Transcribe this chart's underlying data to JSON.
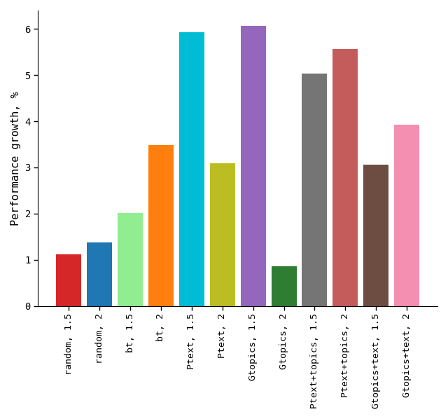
{
  "categories": [
    "random, 1.5",
    "random, 2",
    "bt, 1.5",
    "bt, 2",
    "Ptext, 1.5",
    "Ptext, 2",
    "Gtopics, 1.5",
    "Gtopics, 2",
    "Ptext+topics, 1.5",
    "Ptext+topics, 2",
    "Gtopics+text, 1.5",
    "Gtopics+text, 2"
  ],
  "values": [
    1.12,
    1.38,
    2.02,
    3.49,
    5.93,
    3.09,
    6.06,
    0.86,
    5.03,
    5.57,
    3.06,
    3.92
  ],
  "colors": [
    "#d62728",
    "#1f77b4",
    "#90ee90",
    "#ff7f0e",
    "#00bcd4",
    "#bcbd22",
    "#9467bd",
    "#2e7d32",
    "#757575",
    "#c45c5c",
    "#6d4c41",
    "#f48fb1"
  ],
  "ylabel": "Performance growth, %",
  "ylim": [
    0,
    6.4
  ],
  "yticks": [
    0,
    1,
    2,
    3,
    4,
    5,
    6
  ],
  "bar_width": 0.82
}
